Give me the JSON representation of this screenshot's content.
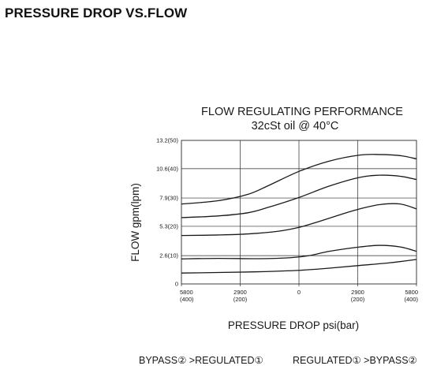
{
  "page": {
    "heading": "PRESSURE DROP VS.FLOW"
  },
  "chart_data": {
    "type": "line",
    "title": "FLOW REGULATING PERFORMANCE",
    "subtitle": "32cSt oil @ 40°C",
    "xlabel": "PRESSURE DROP  psi(bar)",
    "ylabel": "FLOW  gpm(lpm)",
    "x_ticks": [
      {
        "value": -5800,
        "line1": "5800",
        "line2": "(400)"
      },
      {
        "value": -2900,
        "line1": "2900",
        "line2": "(200)"
      },
      {
        "value": 0,
        "line1": "0",
        "line2": ""
      },
      {
        "value": 2900,
        "line1": "2900",
        "line2": "(200)"
      },
      {
        "value": 5800,
        "line1": "5800",
        "line2": "(400)"
      }
    ],
    "y_ticks": [
      {
        "value": 0,
        "label": "0"
      },
      {
        "value": 2.6,
        "label": "2.6(10)"
      },
      {
        "value": 5.3,
        "label": "5.3(20)"
      },
      {
        "value": 7.9,
        "label": "7.9(30)"
      },
      {
        "value": 10.6,
        "label": "10.6(40)"
      },
      {
        "value": 13.2,
        "label": "13.2(50)"
      }
    ],
    "xlim": [
      -5800,
      5800
    ],
    "ylim": [
      0,
      13.2
    ],
    "grid": true,
    "series": [
      {
        "x": [
          -5800,
          -4000,
          -2000,
          0,
          1500,
          3000,
          4500,
          5800
        ],
        "values": [
          1.0,
          1.05,
          1.12,
          1.25,
          1.45,
          1.7,
          1.95,
          2.25
        ]
      },
      {
        "x": [
          -5800,
          -4000,
          -2000,
          -500,
          500,
          1500,
          3000,
          4000,
          5000,
          5800
        ],
        "values": [
          2.3,
          2.35,
          2.32,
          2.4,
          2.6,
          3.0,
          3.4,
          3.55,
          3.4,
          3.0
        ]
      },
      {
        "x": [
          -5800,
          -4000,
          -2500,
          -1000,
          0,
          1000,
          2000,
          3000,
          4000,
          5000,
          5800
        ],
        "values": [
          4.45,
          4.5,
          4.6,
          4.85,
          5.2,
          5.75,
          6.35,
          6.9,
          7.3,
          7.35,
          6.9
        ]
      },
      {
        "x": [
          -5800,
          -4000,
          -2500,
          -1500,
          0,
          1500,
          3000,
          4000,
          5000,
          5800
        ],
        "values": [
          6.1,
          6.25,
          6.55,
          7.05,
          7.95,
          9.0,
          9.8,
          10.0,
          9.9,
          9.6
        ]
      },
      {
        "x": [
          -5800,
          -4000,
          -2500,
          -1500,
          0,
          1500,
          3000,
          4000,
          5000,
          5800
        ],
        "values": [
          7.35,
          7.65,
          8.25,
          9.05,
          10.35,
          11.3,
          11.85,
          11.9,
          11.8,
          11.5
        ]
      }
    ],
    "colors": {
      "line": "#1a1a1a",
      "grid": "#2a2a2a"
    }
  },
  "footer": {
    "left": "BYPASS② >REGULATED①",
    "right": "REGULATED① >BYPASS②"
  }
}
